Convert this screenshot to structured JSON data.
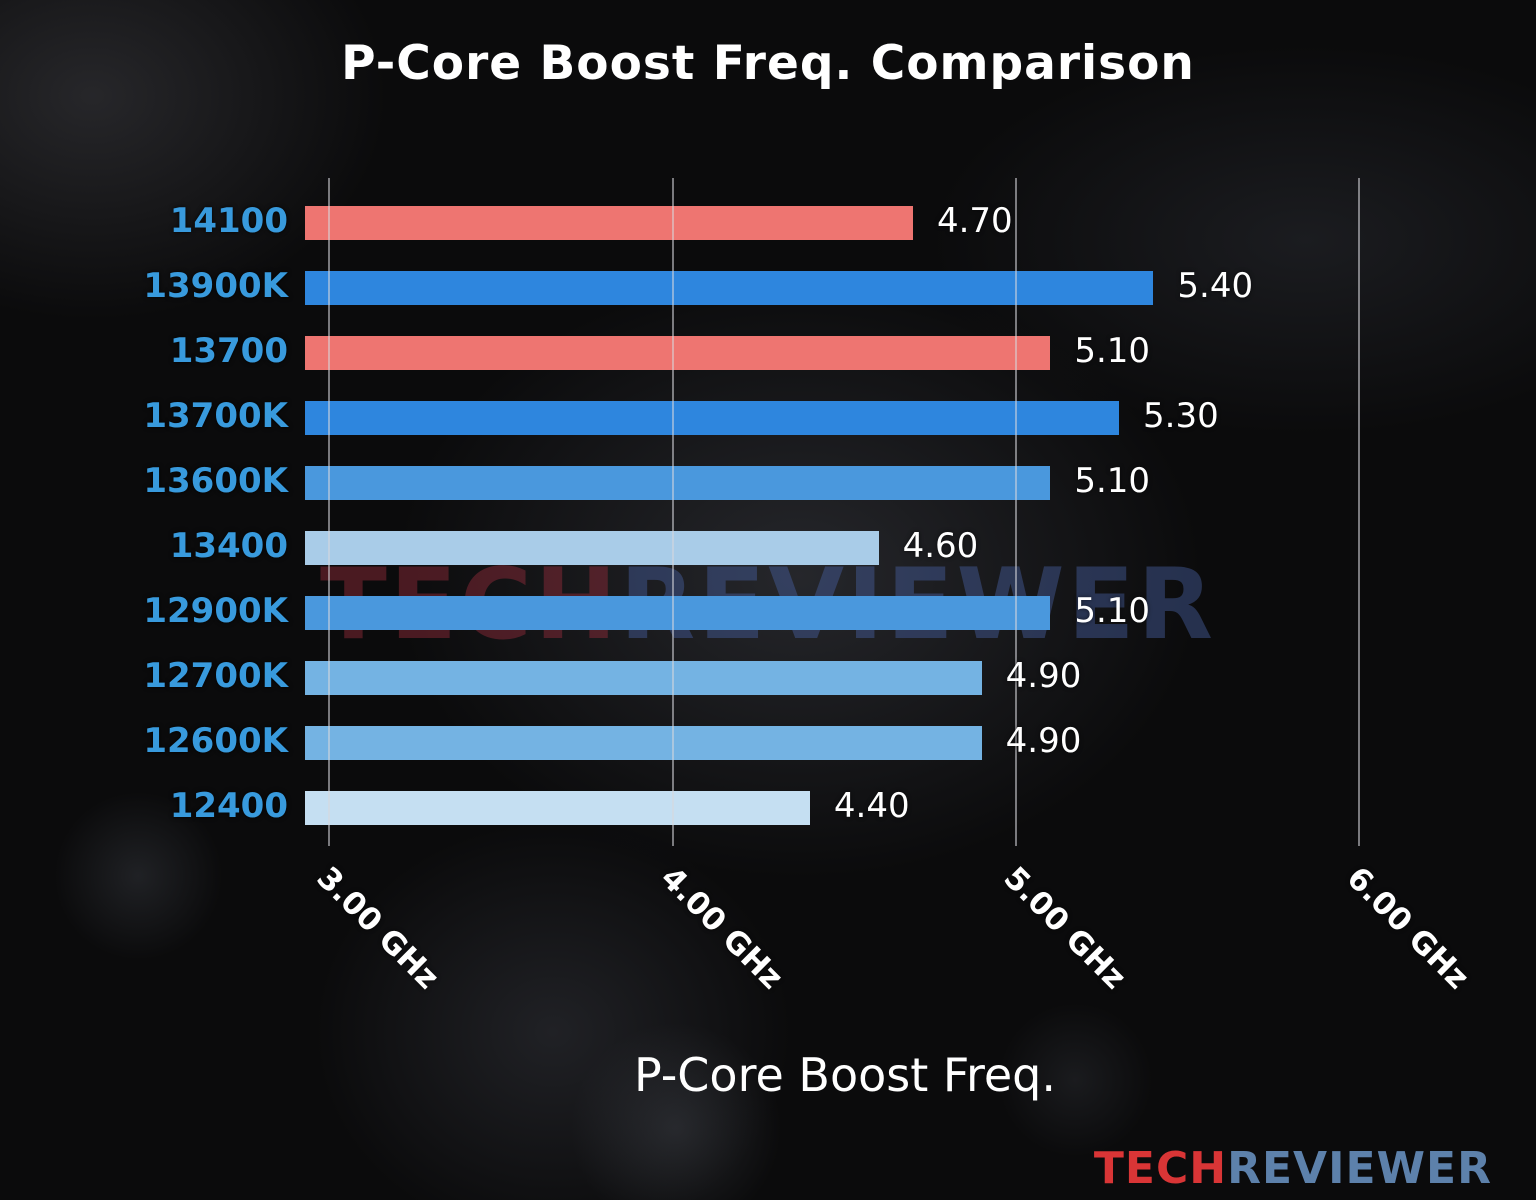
{
  "chart_data": {
    "type": "bar",
    "orientation": "horizontal",
    "title": "P-Core Boost Freq. Comparison",
    "xlabel": "P-Core Boost Freq.",
    "categories": [
      "14100",
      "13900K",
      "13700",
      "13700K",
      "13600K",
      "13400",
      "12900K",
      "12700K",
      "12600K",
      "12400"
    ],
    "values": [
      4.7,
      5.4,
      5.1,
      5.3,
      5.1,
      4.6,
      5.1,
      4.9,
      4.9,
      4.4
    ],
    "value_labels": [
      "4.70",
      "5.40",
      "5.10",
      "5.30",
      "5.10",
      "4.60",
      "5.10",
      "4.90",
      "4.90",
      "4.40"
    ],
    "bar_colors": [
      "#ee7571",
      "#2e86de",
      "#ee7571",
      "#2e86de",
      "#4a98dd",
      "#a9cce8",
      "#4a98dd",
      "#74b3e3",
      "#74b3e3",
      "#c5dff2"
    ],
    "x_tick_values": [
      3,
      4,
      5,
      6
    ],
    "x_tick_labels": [
      "3.00 GHz",
      "4.00 GHz",
      "5.00 GHz",
      "6.00 GHz"
    ],
    "xlim": [
      2.93,
      6.38
    ],
    "grid": true,
    "unit": "GHz",
    "category_label_color": "#389add"
  },
  "watermark": {
    "tech": "TECH",
    "reviewer": "REVIEWER"
  },
  "branding": {
    "tech": "TECH",
    "reviewer": "REVIEWER",
    "tech_color": "#d93536",
    "reviewer_color": "#5d81ab"
  }
}
